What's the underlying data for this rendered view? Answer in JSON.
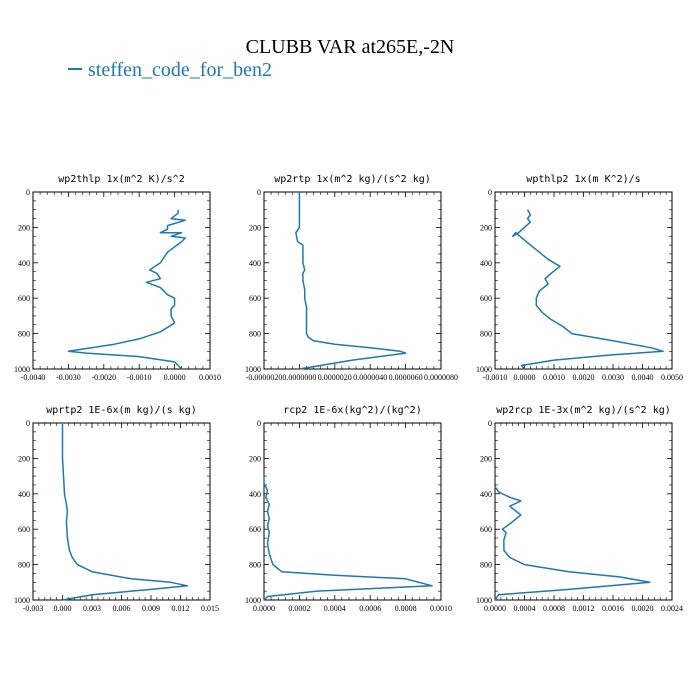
{
  "figure": {
    "title": "CLUBB VAR at265E,-2N",
    "legend_label": "steffen_code_for_ben2",
    "series_color": "#1f77b4"
  },
  "chart_data": [
    {
      "type": "line",
      "title": "wp2thlp   1x(m^2 K)/s^2",
      "xlim": [
        -0.004,
        0.001
      ],
      "ylim": [
        1000,
        0
      ],
      "xticks": [
        -0.004,
        -0.003,
        -0.002,
        -0.001,
        0.0,
        0.001
      ],
      "xticklabels": [
        "-0.0040",
        "-0.0030",
        "-0.0020",
        "-0.0010",
        "0.0000",
        "0.0010"
      ],
      "yticks": [
        0,
        200,
        400,
        600,
        800,
        1000
      ],
      "yticklabels": [
        "0",
        "200",
        "400",
        "600",
        "800",
        "1000"
      ],
      "series": [
        {
          "x": [
            0.0001,
            0.0001,
            -0.0001,
            0.0003,
            -0.0002,
            -0.0002,
            -0.0004,
            0.0002,
            -0.0001,
            0.0003,
            0.0002,
            -0.0002,
            -0.0004,
            -0.0007,
            -0.0005,
            -0.0004,
            -0.0008,
            -0.0004,
            -0.0003,
            -0.0002,
            0.0,
            0.0,
            -0.0001,
            -0.0001,
            0.0,
            -0.0004,
            -0.001,
            -0.0017,
            -0.003,
            -0.0025,
            -0.001,
            0.0,
            0.0002
          ],
          "y": [
            100,
            120,
            150,
            160,
            190,
            210,
            230,
            230,
            250,
            260,
            280,
            340,
            400,
            440,
            460,
            490,
            510,
            540,
            560,
            580,
            600,
            640,
            660,
            700,
            740,
            790,
            830,
            860,
            900,
            910,
            930,
            960,
            1000
          ]
        }
      ]
    },
    {
      "type": "line",
      "title": "wp2rtp   1x(m^2 kg)/(s^2 kg)",
      "xlim": [
        -2e-06,
        8e-06
      ],
      "ylim": [
        1000,
        0
      ],
      "xticks": [
        -2e-06,
        0.0,
        2e-06,
        4e-06,
        6e-06,
        8e-06
      ],
      "xticklabels": [
        "-0.0000020",
        "0.0000000",
        "0.0000020",
        "0.0000040",
        "0.0000060",
        "0.0000080"
      ],
      "yticks": [
        0,
        200,
        400,
        600,
        800,
        1000
      ],
      "yticklabels": [
        "0",
        "200",
        "400",
        "600",
        "800",
        "1000"
      ],
      "series": [
        {
          "x": [
            0.0,
            0.0,
            0.0,
            -2e-07,
            -1e-07,
            2e-07,
            2e-07,
            3e-07,
            2e-07,
            2e-07,
            3e-07,
            3e-07,
            4e-07,
            4e-07,
            4e-07,
            5e-07,
            8e-07,
            2e-06,
            4e-06,
            5.7e-06,
            6e-06,
            3e-06,
            0.0
          ],
          "y": [
            0,
            100,
            200,
            230,
            280,
            300,
            400,
            440,
            460,
            500,
            550,
            600,
            650,
            700,
            800,
            820,
            840,
            860,
            880,
            900,
            910,
            950,
            1000
          ]
        }
      ]
    },
    {
      "type": "line",
      "title": "wpthlp2   1x(m K^2)/s",
      "xlim": [
        -0.001,
        0.005
      ],
      "ylim": [
        1000,
        0
      ],
      "xticks": [
        -0.001,
        0.0,
        0.001,
        0.002,
        0.003,
        0.004,
        0.005
      ],
      "xticklabels": [
        "-0.0010",
        "0.0000",
        "0.0010",
        "0.0020",
        "0.0030",
        "0.0040",
        "0.0050"
      ],
      "yticks": [
        0,
        200,
        400,
        600,
        800,
        1000
      ],
      "yticklabels": [
        "0",
        "200",
        "400",
        "600",
        "800",
        "1000"
      ],
      "series": [
        {
          "x": [
            0.0001,
            0.0002,
            0.0001,
            0.0002,
            0.0,
            -0.0002,
            -0.0004,
            -0.0003,
            0.0002,
            0.0005,
            0.0008,
            0.0012,
            0.0009,
            0.0007,
            0.0008,
            0.0005,
            0.0004,
            0.0004,
            0.0006,
            0.0009,
            0.0013,
            0.0016,
            0.003,
            0.0043,
            0.0047,
            0.003,
            0.001,
            -0.0001,
            0.0
          ],
          "y": [
            100,
            130,
            150,
            170,
            200,
            230,
            250,
            230,
            300,
            340,
            380,
            420,
            460,
            490,
            520,
            560,
            600,
            640,
            680,
            720,
            760,
            800,
            840,
            880,
            900,
            920,
            950,
            980,
            1000
          ]
        }
      ]
    },
    {
      "type": "line",
      "title": "wprtp2   1E-6x(m kg)/(s kg)",
      "xlim": [
        -0.003,
        0.015
      ],
      "ylim": [
        1000,
        0
      ],
      "xticks": [
        -0.003,
        0.0,
        0.003,
        0.006,
        0.009,
        0.012,
        0.015
      ],
      "xticklabels": [
        "-0.003",
        "0.000",
        "0.003",
        "0.006",
        "0.009",
        "0.012",
        "0.015"
      ],
      "yticks": [
        0,
        200,
        400,
        600,
        800,
        1000
      ],
      "yticklabels": [
        "0",
        "200",
        "400",
        "600",
        "800",
        "1000"
      ],
      "series": [
        {
          "x": [
            0.0,
            0.0,
            0.0001,
            0.0002,
            0.0004,
            0.0005,
            0.0004,
            0.0005,
            0.0007,
            0.001,
            0.0015,
            0.003,
            0.007,
            0.011,
            0.0127,
            0.009,
            0.003,
            0.0
          ],
          "y": [
            0,
            200,
            300,
            400,
            460,
            500,
            560,
            650,
            720,
            760,
            800,
            840,
            880,
            900,
            920,
            940,
            970,
            1000
          ]
        }
      ]
    },
    {
      "type": "line",
      "title": "rcp2   1E-6x(kg^2)/(kg^2)",
      "xlim": [
        0.0,
        0.001
      ],
      "ylim": [
        1000,
        0
      ],
      "xticks": [
        0.0,
        0.0002,
        0.0004,
        0.0006,
        0.0008,
        0.001
      ],
      "xticklabels": [
        "0.0000",
        "0.0002",
        "0.0004",
        "0.0006",
        "0.0008",
        "0.0010"
      ],
      "yticks": [
        0,
        200,
        400,
        600,
        800,
        1000
      ],
      "yticklabels": [
        "0",
        "200",
        "400",
        "600",
        "800",
        "1000"
      ],
      "series": [
        {
          "x": [
            0.0,
            0.0,
            2e-05,
            1e-05,
            3e-05,
            2e-05,
            3e-05,
            2e-05,
            3e-05,
            2e-05,
            3e-05,
            5e-05,
            0.0001,
            0.0004,
            0.0008,
            0.00095,
            0.0003,
            2e-05,
            0.0
          ],
          "y": [
            300,
            340,
            380,
            420,
            460,
            500,
            540,
            580,
            620,
            680,
            740,
            800,
            840,
            860,
            880,
            920,
            950,
            980,
            1000
          ]
        }
      ]
    },
    {
      "type": "line",
      "title": "wp2rcp   1E-3x(m^2 kg)/(s^2 kg)",
      "xlim": [
        0.0,
        0.0024
      ],
      "ylim": [
        1000,
        0
      ],
      "xticks": [
        0.0,
        0.0004,
        0.0008,
        0.0012,
        0.0016,
        0.002,
        0.0024
      ],
      "xticklabels": [
        "0.0000",
        "0.0004",
        "0.0008",
        "0.0012",
        "0.0016",
        "0.0020",
        "0.0024"
      ],
      "yticks": [
        0,
        200,
        400,
        600,
        800,
        1000
      ],
      "yticklabels": [
        "0",
        "200",
        "400",
        "600",
        "800",
        "1000"
      ],
      "series": [
        {
          "x": [
            0.0,
            5e-05,
            0.0002,
            0.00035,
            0.0002,
            0.00035,
            0.0002,
            0.0001,
            0.00015,
            0.00012,
            0.00012,
            0.0002,
            0.0004,
            0.001,
            0.0017,
            0.0021,
            0.001,
            5e-05,
            0.0
          ],
          "y": [
            360,
            390,
            420,
            440,
            470,
            520,
            570,
            600,
            620,
            660,
            720,
            760,
            800,
            840,
            870,
            900,
            940,
            970,
            1000
          ]
        }
      ]
    }
  ]
}
